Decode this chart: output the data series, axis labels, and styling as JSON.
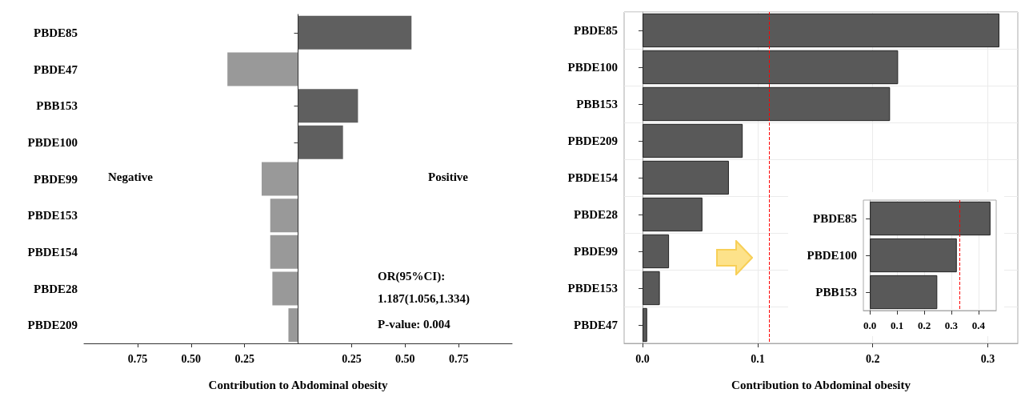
{
  "chart_data": [
    {
      "type": "bar",
      "orientation": "horizontal",
      "xlabel": "Contribution to Abdominal obesity",
      "categories": [
        "PBDE85",
        "PBDE47",
        "PBB153",
        "PBDE100",
        "PBDE99",
        "PBDE153",
        "PBDE154",
        "PBDE28",
        "PBDE209"
      ],
      "values": [
        0.53,
        -0.33,
        0.28,
        0.21,
        -0.17,
        -0.13,
        -0.13,
        -0.12,
        -0.045
      ],
      "colors": [
        "#5f5f5f",
        "#999999",
        "#5f5f5f",
        "#5f5f5f",
        "#999999",
        "#999999",
        "#999999",
        "#999999",
        "#999999"
      ],
      "xlim": [
        -1,
        1
      ],
      "xticks": [
        {
          "value": -0.75,
          "label": "0.75"
        },
        {
          "value": -0.5,
          "label": "0.50"
        },
        {
          "value": -0.25,
          "label": "0.25"
        },
        {
          "value": 0.25,
          "label": "0.25"
        },
        {
          "value": 0.5,
          "label": "0.50"
        },
        {
          "value": 0.75,
          "label": "0.75"
        }
      ],
      "ref_lines": [
        {
          "axis": "x",
          "value": 0,
          "color": "#333333",
          "line_style": "solid"
        }
      ],
      "annotations": [
        "Negative",
        "Positive",
        "OR(95%CI):",
        "1.187(1.056,1.334)",
        "P-value: 0.004"
      ],
      "grid": false
    },
    {
      "type": "bar",
      "orientation": "horizontal",
      "xlabel": "Contribution to Abdominal obesity",
      "categories": [
        "PBDE85",
        "PBDE100",
        "PBB153",
        "PBDE209",
        "PBDE154",
        "PBDE28",
        "PBDE99",
        "PBDE153",
        "PBDE47"
      ],
      "values": [
        0.31,
        0.222,
        0.215,
        0.087,
        0.075,
        0.052,
        0.023,
        0.015,
        0.004
      ],
      "color": "#595959",
      "xlim": [
        -0.016,
        0.326
      ],
      "xticks": [
        {
          "value": 0,
          "label": "0.0"
        },
        0.1,
        0.2,
        0.3
      ],
      "ref_lines": [
        {
          "axis": "x",
          "value": 0.111,
          "color": "#ff0000",
          "line_style": "dashed"
        }
      ],
      "grid": true
    },
    {
      "type": "bar",
      "orientation": "horizontal",
      "categories": [
        "PBDE85",
        "PBDE100",
        "PBB153"
      ],
      "values": [
        0.444,
        0.32,
        0.248
      ],
      "color": "#595959",
      "xlim": [
        -0.024,
        0.465
      ],
      "xticks": [
        {
          "value": 0,
          "label": "0.0"
        },
        0.1,
        0.2,
        0.3,
        0.4
      ],
      "ref_lines": [
        {
          "axis": "x",
          "value": 0.33,
          "color": "#ff0000",
          "line_style": "dashed"
        }
      ],
      "grid": "x"
    }
  ]
}
